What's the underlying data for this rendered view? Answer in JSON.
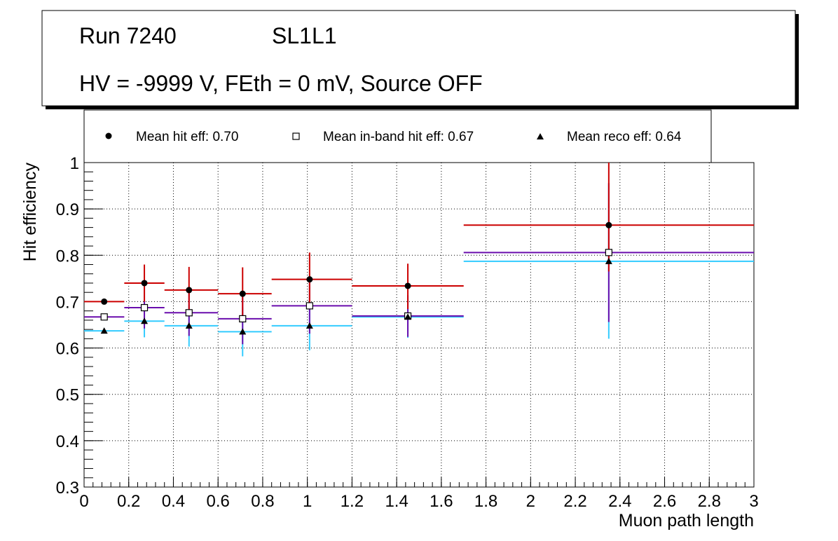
{
  "header": {
    "run": "Run 7240",
    "layer": "SL1L1",
    "conditions": "HV = -9999 V, FEth = 0 mV, Source OFF"
  },
  "legend": [
    {
      "label": "Mean hit  eff: 0.70",
      "marker": "circle"
    },
    {
      "label": "Mean in-band hit eff: 0.67",
      "marker": "open-square"
    },
    {
      "label": "Mean reco eff: 0.64",
      "marker": "triangle"
    }
  ],
  "colors": {
    "hit": "#cc0000",
    "inband": "#6a0dad",
    "reco": "#33ccff"
  },
  "chart_data": {
    "type": "scatter",
    "title": "",
    "xlabel": "Muon path length",
    "ylabel": "Hit efficiency",
    "xlim": [
      0,
      3
    ],
    "ylim": [
      0.3,
      1
    ],
    "grid": true,
    "xticks": [
      "0",
      "0.2",
      "0.4",
      "0.6",
      "0.8",
      "1",
      "1.2",
      "1.4",
      "1.6",
      "1.8",
      "2",
      "2.2",
      "2.4",
      "2.6",
      "2.8",
      "3"
    ],
    "yticks": [
      "0.3",
      "0.4",
      "0.5",
      "0.6",
      "0.7",
      "0.8",
      "0.9",
      "1"
    ],
    "bins": [
      [
        0,
        0.18
      ],
      [
        0.18,
        0.36
      ],
      [
        0.36,
        0.6
      ],
      [
        0.6,
        0.84
      ],
      [
        0.84,
        1.2
      ],
      [
        1.2,
        1.7
      ],
      [
        1.7,
        3.0
      ]
    ],
    "series": [
      {
        "name": "Mean hit  eff: 0.70",
        "key": "hit",
        "marker": "circle",
        "x": [
          0.09,
          0.27,
          0.47,
          0.71,
          1.01,
          1.45,
          2.35
        ],
        "y": [
          0.7,
          0.74,
          0.725,
          0.717,
          0.748,
          0.734,
          0.865
        ],
        "yerr_low": [
          0.005,
          0.04,
          0.05,
          0.055,
          0.06,
          0.05,
          0.1
        ],
        "yerr_high": [
          0.005,
          0.04,
          0.05,
          0.057,
          0.058,
          0.048,
          0.135
        ]
      },
      {
        "name": "Mean in-band hit eff: 0.67",
        "key": "inband",
        "marker": "open-square",
        "x": [
          0.09,
          0.27,
          0.47,
          0.71,
          1.01,
          1.45,
          2.35
        ],
        "y": [
          0.667,
          0.687,
          0.676,
          0.663,
          0.691,
          0.669,
          0.806
        ],
        "yerr_low": [
          0.005,
          0.045,
          0.05,
          0.055,
          0.06,
          0.045,
          0.15
        ],
        "yerr_high": [
          0.005,
          0.045,
          0.05,
          0.055,
          0.06,
          0.045,
          0.15
        ]
      },
      {
        "name": "Mean reco eff: 0.64",
        "key": "reco",
        "marker": "triangle",
        "x": [
          0.09,
          0.27,
          0.47,
          0.71,
          1.01,
          1.45,
          2.35
        ],
        "y": [
          0.637,
          0.658,
          0.648,
          0.635,
          0.648,
          0.667,
          0.787
        ],
        "yerr_low": [
          0.005,
          0.035,
          0.045,
          0.053,
          0.053,
          0.045,
          0.167
        ],
        "yerr_high": [
          0.005,
          0.035,
          0.045,
          0.053,
          0.053,
          0.045,
          0.167
        ]
      }
    ]
  }
}
